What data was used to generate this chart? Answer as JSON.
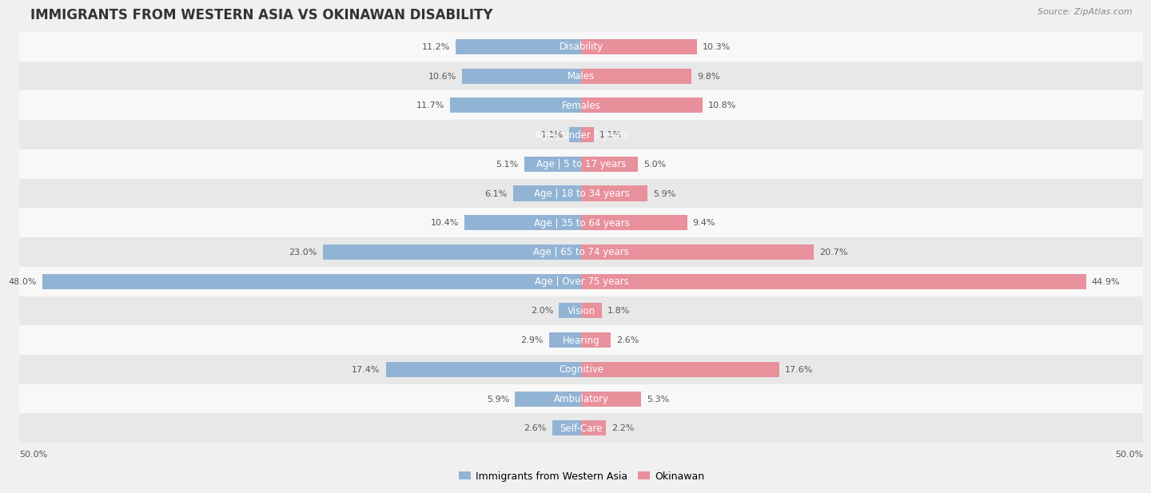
{
  "title": "IMMIGRANTS FROM WESTERN ASIA VS OKINAWAN DISABILITY",
  "source": "Source: ZipAtlas.com",
  "categories": [
    "Disability",
    "Males",
    "Females",
    "Age | Under 5 years",
    "Age | 5 to 17 years",
    "Age | 18 to 34 years",
    "Age | 35 to 64 years",
    "Age | 65 to 74 years",
    "Age | Over 75 years",
    "Vision",
    "Hearing",
    "Cognitive",
    "Ambulatory",
    "Self-Care"
  ],
  "left_values": [
    11.2,
    10.6,
    11.7,
    1.1,
    5.1,
    6.1,
    10.4,
    23.0,
    48.0,
    2.0,
    2.9,
    17.4,
    5.9,
    2.6
  ],
  "right_values": [
    10.3,
    9.8,
    10.8,
    1.1,
    5.0,
    5.9,
    9.4,
    20.7,
    44.9,
    1.8,
    2.6,
    17.6,
    5.3,
    2.2
  ],
  "left_color": "#92b4d4",
  "right_color": "#e8909c",
  "left_label": "Immigrants from Western Asia",
  "right_label": "Okinawan",
  "max_val": 50.0,
  "background_color": "#f0f0f0",
  "row_color_even": "#f8f8f8",
  "row_color_odd": "#e8e8e8",
  "title_fontsize": 12,
  "label_fontsize": 8.5,
  "value_fontsize": 8,
  "axis_label_fontsize": 8
}
